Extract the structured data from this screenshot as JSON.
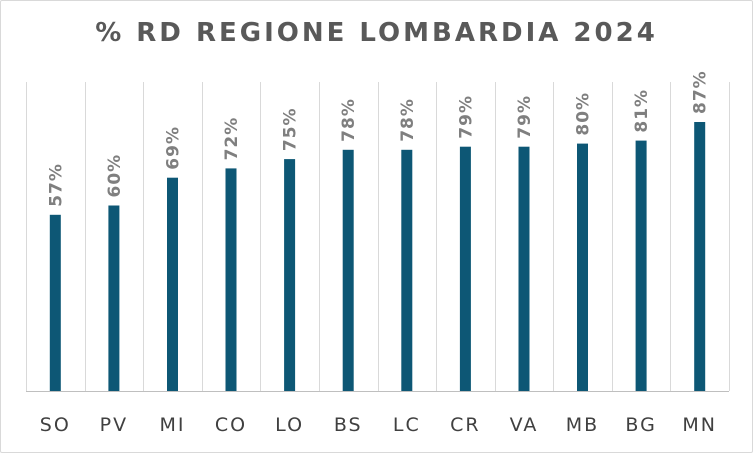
{
  "chart_data": {
    "type": "bar",
    "title": "% RD REGIONE LOMBARDIA 2024",
    "xlabel": "",
    "ylabel": "",
    "categories": [
      "SO",
      "PV",
      "MI",
      "CO",
      "LO",
      "BS",
      "LC",
      "CR",
      "VA",
      "MB",
      "BG",
      "MN"
    ],
    "values": [
      57,
      60,
      69,
      72,
      75,
      78,
      78,
      79,
      79,
      80,
      81,
      87
    ],
    "value_labels": [
      "57%",
      "60%",
      "69%",
      "72%",
      "75%",
      "78%",
      "78%",
      "79%",
      "79%",
      "80%",
      "81%",
      "87%"
    ],
    "ylim": [
      0,
      100
    ],
    "grid": "vertical-separators",
    "legend": "none",
    "colors": {
      "bar": "#0d5775",
      "title": "#595959",
      "data_label": "#7f7f7f",
      "tick_label": "#404040",
      "grid": "#d9d9d9"
    }
  }
}
